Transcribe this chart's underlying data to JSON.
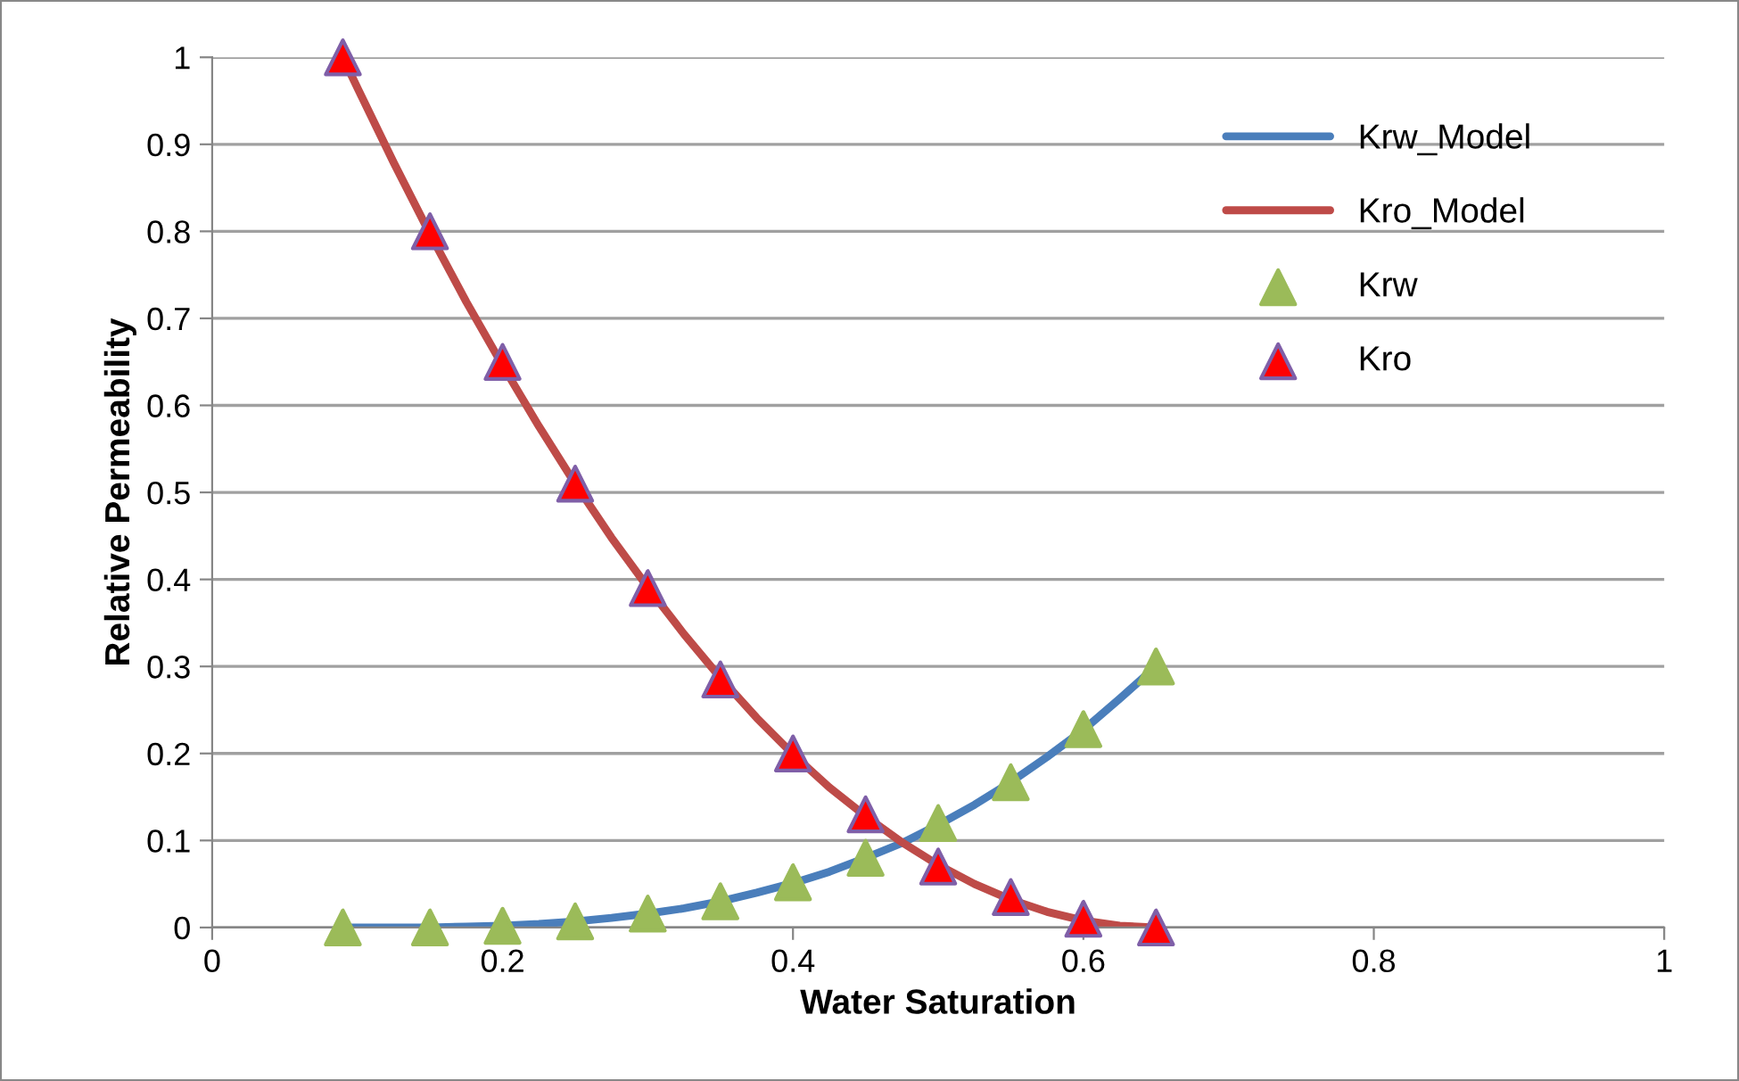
{
  "chart_data": {
    "type": "line",
    "xlabel": "Water Saturation",
    "ylabel": "Relative Permeability",
    "xlim": [
      0,
      1
    ],
    "xticks": [
      0,
      0.2,
      0.4,
      0.6,
      0.8,
      1
    ],
    "ylim": [
      0,
      1
    ],
    "yticks": [
      0,
      0.1,
      0.2,
      0.3,
      0.4,
      0.5,
      0.6,
      0.7,
      0.8,
      0.9,
      1
    ],
    "grid": "y",
    "legend": "top right",
    "series": [
      {
        "name": "Krw_Model",
        "color": "#4a7ebb",
        "marker": "none",
        "x": [
          0.09,
          0.1,
          0.125,
          0.15,
          0.175,
          0.2,
          0.225,
          0.25,
          0.275,
          0.3,
          0.325,
          0.35,
          0.375,
          0.4,
          0.425,
          0.45,
          0.475,
          0.5,
          0.525,
          0.55,
          0.575,
          0.6,
          0.625,
          0.65
        ],
        "values": [
          0,
          0,
          0,
          0,
          0.001,
          0.002,
          0.004,
          0.007,
          0.011,
          0.016,
          0.022,
          0.03,
          0.04,
          0.051,
          0.064,
          0.08,
          0.097,
          0.118,
          0.141,
          0.167,
          0.196,
          0.227,
          0.263,
          0.3
        ]
      },
      {
        "name": "Kro_Model",
        "color": "#be4b48",
        "marker": "none",
        "x": [
          0.09,
          0.1,
          0.125,
          0.15,
          0.175,
          0.2,
          0.225,
          0.25,
          0.275,
          0.3,
          0.325,
          0.35,
          0.375,
          0.4,
          0.425,
          0.45,
          0.475,
          0.5,
          0.525,
          0.55,
          0.575,
          0.6,
          0.625,
          0.65
        ],
        "values": [
          1,
          0.965,
          0.879,
          0.797,
          0.719,
          0.646,
          0.576,
          0.51,
          0.448,
          0.391,
          0.337,
          0.287,
          0.241,
          0.199,
          0.161,
          0.128,
          0.098,
          0.072,
          0.05,
          0.032,
          0.018,
          0.008,
          0.002,
          0
        ]
      },
      {
        "name": "Krw",
        "type": "scatter",
        "color": "#9bbb59",
        "marker": "triangle",
        "x": [
          0.09,
          0.15,
          0.2,
          0.25,
          0.3,
          0.35,
          0.4,
          0.45,
          0.5,
          0.55,
          0.6,
          0.65
        ],
        "values": [
          0,
          0,
          0.002,
          0.007,
          0.016,
          0.03,
          0.052,
          0.08,
          0.12,
          0.167,
          0.228,
          0.3
        ]
      },
      {
        "name": "Kro",
        "type": "scatter",
        "color": "#ff0000",
        "marker": "triangle",
        "x": [
          0.09,
          0.15,
          0.2,
          0.25,
          0.3,
          0.35,
          0.4,
          0.45,
          0.5,
          0.55,
          0.6,
          0.65
        ],
        "values": [
          1,
          0.8,
          0.65,
          0.51,
          0.39,
          0.285,
          0.2,
          0.13,
          0.07,
          0.035,
          0.01,
          0
        ]
      }
    ]
  }
}
